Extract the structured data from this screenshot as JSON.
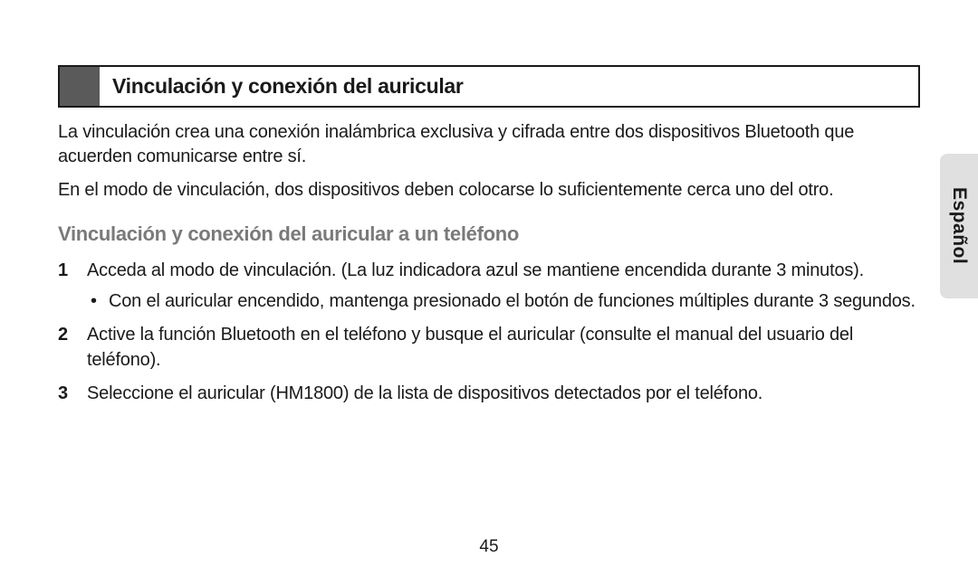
{
  "heading": "Vinculación y conexión del auricular",
  "intro": [
    "La vinculación crea una conexión inalámbrica exclusiva y cifrada entre dos dispositivos Bluetooth que acuerden comunicarse entre sí.",
    "En el modo de vinculación, dos dispositivos deben colocarse lo suficientemente cerca uno del otro."
  ],
  "subheading": "Vinculación y conexión del auricular a un teléfono",
  "steps": [
    {
      "num": "1",
      "text": "Acceda al modo de vinculación. (La luz indicadora azul se mantiene encendida durante 3 minutos).",
      "bullets": [
        "Con el auricular encendido, mantenga presionado el botón de funciones múltiples durante 3 segundos."
      ]
    },
    {
      "num": "2",
      "text": "Active la función Bluetooth en el teléfono y busque el auricular (consulte el manual del usuario del teléfono).",
      "bullets": []
    },
    {
      "num": "3",
      "text": "Seleccione el auricular (HM1800) de la lista de dispositivos detectados por el teléfono.",
      "bullets": []
    }
  ],
  "language_tab": "Español",
  "page_number": "45",
  "colors": {
    "heading_block": "#5a5a5a",
    "heading_border": "#1a1a1a",
    "subheading_text": "#7a7a7a",
    "body_text": "#1a1a1a",
    "tab_bg": "#e0e0e0",
    "page_bg": "#ffffff"
  }
}
